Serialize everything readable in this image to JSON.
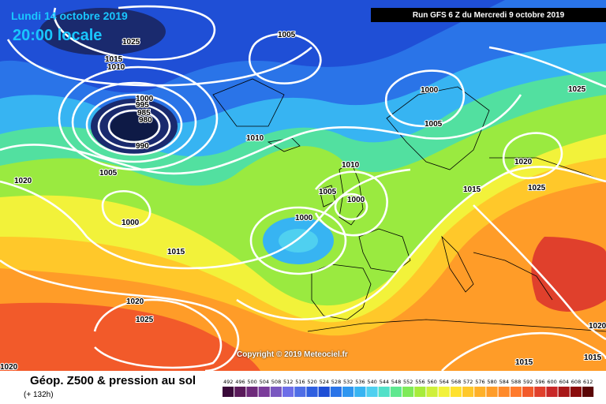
{
  "header": {
    "date_label": "Lundi 14 octobre 2019",
    "time_label": "20:00 locale",
    "run_label": "Run GFS 6 Z du Mercredi 9 octobre 2019"
  },
  "footer": {
    "title": "Géop. Z500 & pression au sol",
    "subtitle": "(+ 132h)",
    "copyright": "Copyright © 2019 Meteociel.fr"
  },
  "legend": {
    "values": [
      "492",
      "496",
      "500",
      "504",
      "508",
      "512",
      "516",
      "520",
      "524",
      "528",
      "532",
      "536",
      "540",
      "544",
      "548",
      "552",
      "556",
      "560",
      "564",
      "568",
      "572",
      "576",
      "580",
      "584",
      "588",
      "592",
      "596",
      "600",
      "604",
      "608",
      "612"
    ],
    "colors": [
      "#3a0a3a",
      "#5a1a5a",
      "#6e2a7a",
      "#7b3c9a",
      "#7a58c0",
      "#6d6ee8",
      "#4f6ee6",
      "#2f5fe0",
      "#1f4fd6",
      "#2a74e8",
      "#2e96f0",
      "#37b4f2",
      "#4fd0f0",
      "#52e0c8",
      "#5fe890",
      "#7eea58",
      "#a6ec3a",
      "#cff03a",
      "#f2f23a",
      "#ffe12e",
      "#ffc82a",
      "#ffb028",
      "#ff9c28",
      "#ff8a2a",
      "#ff7a2c",
      "#f25a2a",
      "#e0402c",
      "#c82828",
      "#a81818",
      "#8a0c0c",
      "#5a0606"
    ]
  },
  "map": {
    "colors": {
      "deep": "#1a2a6e",
      "blue_dark": "#1f4fd6",
      "blue": "#2a74e8",
      "cyan": "#37b4f2",
      "teal": "#4fd0f0",
      "green": "#52e0a0",
      "lime": "#9aea40",
      "yellow": "#f2f23a",
      "orange_light": "#ffc82a",
      "orange": "#ff9c28",
      "red_orange": "#f25a2a",
      "red": "#e0402c"
    },
    "isobar_labels": [
      "1025",
      "1015",
      "1010",
      "1005",
      "1000",
      "995",
      "985",
      "980",
      "990",
      "1010",
      "1005",
      "1020",
      "1000",
      "1005",
      "1010",
      "1005",
      "1000",
      "1000",
      "1015",
      "1015",
      "1020",
      "1025",
      "1020",
      "1025",
      "1000",
      "1005",
      "1025",
      "1020",
      "1015",
      "1020",
      "1015",
      "1015",
      "1015"
    ]
  }
}
